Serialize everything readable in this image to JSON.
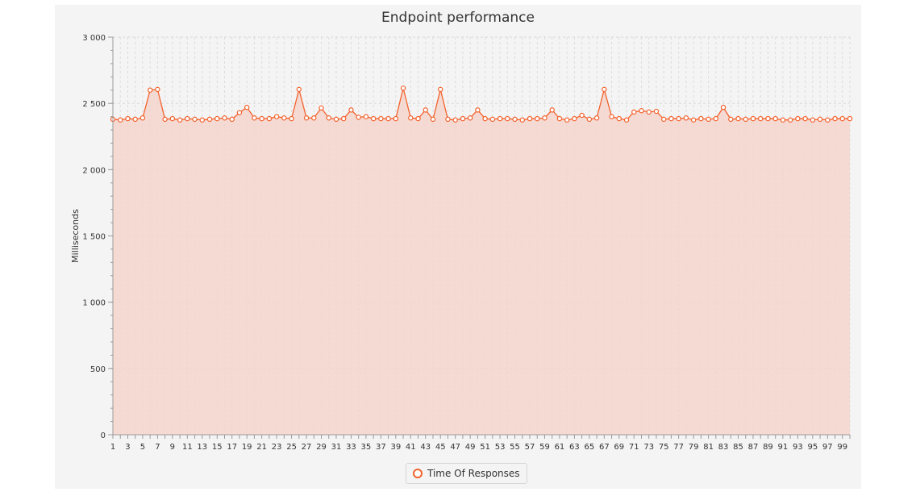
{
  "chart_data": {
    "type": "area",
    "title": "Endpoint performance",
    "xlabel": "",
    "ylabel": "Milliseconds",
    "x": [
      1,
      2,
      3,
      4,
      5,
      6,
      7,
      8,
      9,
      10,
      11,
      12,
      13,
      14,
      15,
      16,
      17,
      18,
      19,
      20,
      21,
      22,
      23,
      24,
      25,
      26,
      27,
      28,
      29,
      30,
      31,
      32,
      33,
      34,
      35,
      36,
      37,
      38,
      39,
      40,
      41,
      42,
      43,
      44,
      45,
      46,
      47,
      48,
      49,
      50,
      51,
      52,
      53,
      54,
      55,
      56,
      57,
      58,
      59,
      60,
      61,
      62,
      63,
      64,
      65,
      66,
      67,
      68,
      69,
      70,
      71,
      72,
      73,
      74,
      75,
      76,
      77,
      78,
      79,
      80,
      81,
      82,
      83,
      84,
      85,
      86,
      87,
      88,
      89,
      90,
      91,
      92,
      93,
      94,
      95,
      96,
      97,
      98,
      99,
      100
    ],
    "x_tick_labels": [
      "1",
      "3",
      "5",
      "7",
      "9",
      "11",
      "13",
      "15",
      "17",
      "19",
      "21",
      "23",
      "25",
      "27",
      "29",
      "31",
      "33",
      "35",
      "37",
      "39",
      "41",
      "43",
      "45",
      "47",
      "49",
      "51",
      "53",
      "55",
      "57",
      "59",
      "61",
      "63",
      "65",
      "67",
      "69",
      "71",
      "73",
      "75",
      "77",
      "79",
      "81",
      "83",
      "85",
      "87",
      "89",
      "91",
      "93",
      "95",
      "97",
      "99"
    ],
    "y_tick_labels": [
      "0",
      "500",
      "1 000",
      "1 500",
      "2 000",
      "2 500",
      "3 000"
    ],
    "ylim": [
      0,
      3000
    ],
    "grid": true,
    "legend_position": "bottom",
    "series": [
      {
        "name": "Time Of Responses",
        "color": "#f3622d",
        "fill": "#f3d5cc",
        "values": [
          2380,
          2375,
          2385,
          2380,
          2390,
          2600,
          2605,
          2380,
          2385,
          2375,
          2385,
          2380,
          2375,
          2380,
          2385,
          2390,
          2380,
          2430,
          2470,
          2390,
          2385,
          2385,
          2400,
          2390,
          2385,
          2605,
          2390,
          2390,
          2465,
          2390,
          2380,
          2385,
          2450,
          2395,
          2400,
          2385,
          2385,
          2385,
          2385,
          2615,
          2390,
          2385,
          2450,
          2380,
          2605,
          2380,
          2375,
          2385,
          2390,
          2450,
          2385,
          2380,
          2385,
          2385,
          2380,
          2375,
          2385,
          2385,
          2390,
          2450,
          2385,
          2375,
          2385,
          2410,
          2380,
          2390,
          2605,
          2400,
          2385,
          2375,
          2435,
          2445,
          2435,
          2440,
          2380,
          2385,
          2385,
          2390,
          2375,
          2385,
          2380,
          2385,
          2470,
          2380,
          2385,
          2380,
          2385,
          2385,
          2385,
          2385,
          2375,
          2375,
          2385,
          2385,
          2375,
          2380,
          2375,
          2385,
          2385,
          2385
        ]
      }
    ]
  }
}
